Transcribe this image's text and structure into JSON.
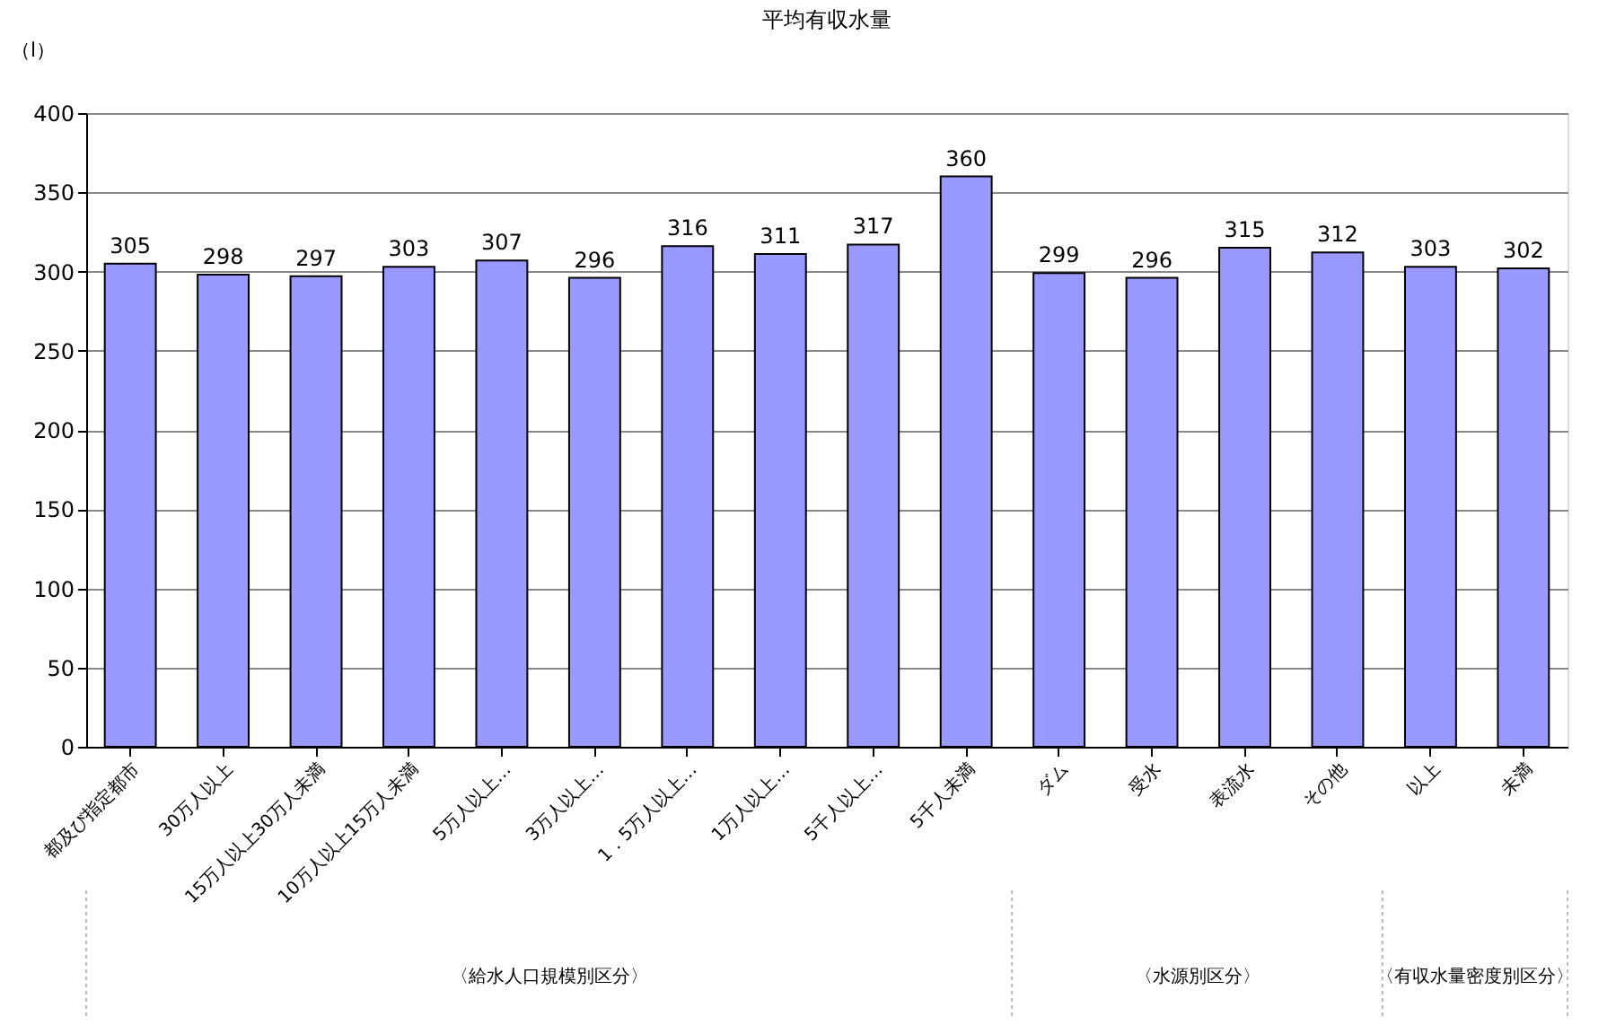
{
  "chart_data": {
    "type": "bar",
    "title": "平均有収水量",
    "ylabel": "（l）",
    "categories": [
      "都及び指定都市",
      "30万人以上",
      "15万人以上30万人未満",
      "10万人以上15万人未満",
      "5万人以上…",
      "3万人以上…",
      "1．5万人以上…",
      "1万人以上…",
      "5千人以上…",
      "5千人未満",
      "ダム",
      "受水",
      "表流水",
      "その他",
      "以上",
      "未満"
    ],
    "values": [
      305,
      298,
      297,
      303,
      307,
      296,
      316,
      311,
      317,
      360,
      299,
      296,
      315,
      312,
      303,
      302
    ],
    "color": "#9999ff",
    "ylim": [
      0,
      400
    ],
    "yticks": [
      0,
      50,
      100,
      150,
      200,
      250,
      300,
      350,
      400
    ],
    "grid": "y",
    "data_labels": true,
    "annotations": [
      "〈給水人口規模別区分〉",
      "〈水源別区分〉",
      "〈有収水量密度別区分〉"
    ]
  }
}
